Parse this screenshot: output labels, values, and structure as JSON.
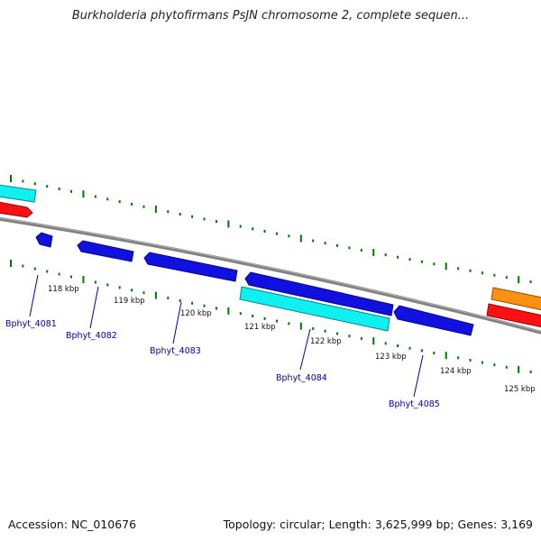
{
  "title": "Burkholderia phytofirmans PsJN chromosome 2, complete sequen...",
  "footer": {
    "accession": "Accession: NC_010676",
    "topology": "Topology: circular; Length: 3,625,999 bp; Genes: 3,169"
  },
  "colors": {
    "backbone": "#808080",
    "tick": "#007700",
    "gene_blue": "#1010e0",
    "gene_cyan": "#10f0f0",
    "gene_red": "#ff1010",
    "gene_orange": "#ff9010",
    "label": "#0000aa"
  },
  "kbp_labels": [
    "118 kbp",
    "119 kbp",
    "120 kbp",
    "121 kbp",
    "122 kbp",
    "123 kbp",
    "124 kbp",
    "125 kbp"
  ],
  "genes": [
    {
      "label": "Bphyt_4081",
      "color": "blue"
    },
    {
      "label": "Bphyt_4082",
      "color": "blue"
    },
    {
      "label": "Bphyt_4083",
      "color": "blue"
    },
    {
      "label": "Bphyt_4084",
      "color": "blue"
    },
    {
      "label": "Bphyt_4085",
      "color": "blue"
    },
    {
      "label": "",
      "color": "cyan"
    },
    {
      "label": "",
      "color": "cyan"
    },
    {
      "label": "",
      "color": "red"
    },
    {
      "label": "",
      "color": "red"
    },
    {
      "label": "",
      "color": "orange"
    }
  ]
}
